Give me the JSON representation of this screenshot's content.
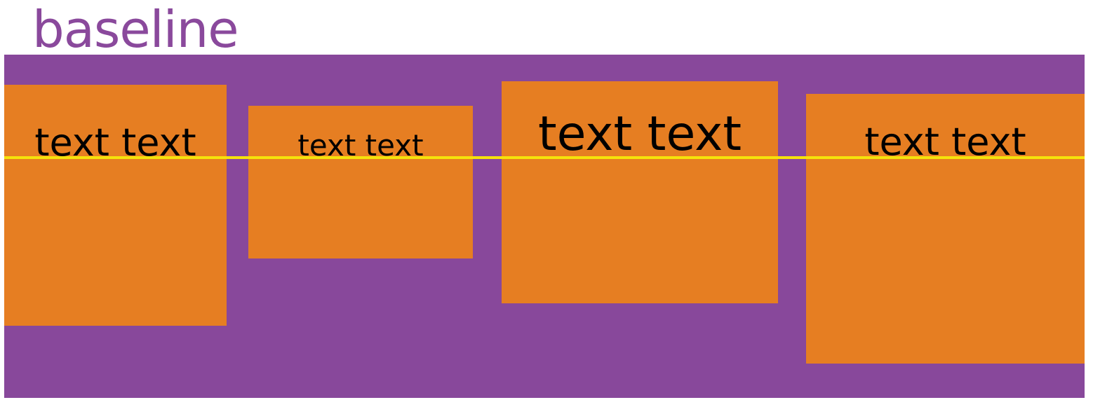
{
  "title": "baseline",
  "colors": {
    "title": "#8a499c",
    "container": "#88489b",
    "item": "#e67e22",
    "baseline_line": "#f5e20a",
    "text": "#000000"
  },
  "items": [
    {
      "label": "text text"
    },
    {
      "label": "text text"
    },
    {
      "label": "text text"
    },
    {
      "label": "text text"
    }
  ]
}
